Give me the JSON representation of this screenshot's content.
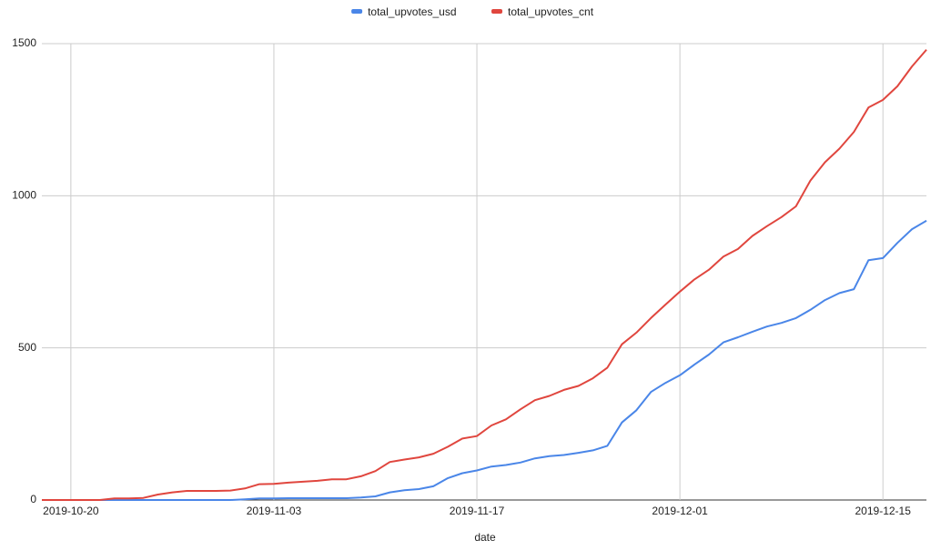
{
  "chart_data": {
    "type": "line",
    "x_label": "date",
    "x": [
      "2019-10-18",
      "2019-10-19",
      "2019-10-20",
      "2019-10-21",
      "2019-10-22",
      "2019-10-23",
      "2019-10-24",
      "2019-10-25",
      "2019-10-26",
      "2019-10-27",
      "2019-10-28",
      "2019-10-29",
      "2019-10-30",
      "2019-10-31",
      "2019-11-01",
      "2019-11-02",
      "2019-11-03",
      "2019-11-04",
      "2019-11-05",
      "2019-11-06",
      "2019-11-07",
      "2019-11-08",
      "2019-11-09",
      "2019-11-10",
      "2019-11-11",
      "2019-11-12",
      "2019-11-13",
      "2019-11-14",
      "2019-11-15",
      "2019-11-16",
      "2019-11-17",
      "2019-11-18",
      "2019-11-19",
      "2019-11-20",
      "2019-11-21",
      "2019-11-22",
      "2019-11-23",
      "2019-11-24",
      "2019-11-25",
      "2019-11-26",
      "2019-11-27",
      "2019-11-28",
      "2019-11-29",
      "2019-11-30",
      "2019-12-01",
      "2019-12-02",
      "2019-12-03",
      "2019-12-04",
      "2019-12-05",
      "2019-12-06",
      "2019-12-07",
      "2019-12-08",
      "2019-12-09",
      "2019-12-10",
      "2019-12-11",
      "2019-12-12",
      "2019-12-13",
      "2019-12-14",
      "2019-12-15",
      "2019-12-16",
      "2019-12-17",
      "2019-12-18"
    ],
    "series": [
      {
        "name": "total_upvotes_usd",
        "color": "#4a86e8",
        "values": [
          0,
          0,
          0,
          0,
          0,
          0,
          0,
          0,
          0,
          0,
          0,
          0,
          0,
          0,
          2,
          5,
          5,
          6,
          6,
          6,
          6,
          6,
          8,
          12,
          25,
          32,
          36,
          45,
          72,
          88,
          97,
          110,
          115,
          123,
          137,
          144,
          148,
          155,
          163,
          178,
          255,
          295,
          355,
          385,
          410,
          445,
          478,
          518,
          535,
          553,
          570,
          582,
          598,
          625,
          657,
          680,
          693,
          788,
          795,
          845,
          890,
          918
        ]
      },
      {
        "name": "total_upvotes_cnt",
        "color": "#e0463e",
        "values": [
          0,
          0,
          0,
          0,
          0,
          5,
          5,
          7,
          18,
          25,
          30,
          30,
          30,
          31,
          38,
          52,
          53,
          57,
          60,
          63,
          68,
          68,
          78,
          95,
          125,
          133,
          140,
          152,
          175,
          202,
          210,
          245,
          265,
          298,
          328,
          342,
          362,
          375,
          400,
          435,
          512,
          550,
          598,
          642,
          685,
          725,
          757,
          800,
          825,
          868,
          900,
          930,
          965,
          1050,
          1110,
          1155,
          1210,
          1290,
          1315,
          1360,
          1425,
          1480
        ]
      }
    ],
    "xlim": [
      "2019-10-18",
      "2019-12-18"
    ],
    "xticks": [
      "2019-10-20",
      "2019-11-03",
      "2019-11-17",
      "2019-12-01",
      "2019-12-15"
    ],
    "ylim": [
      0,
      1500
    ],
    "yticks": [
      0,
      500,
      1000,
      1500
    ],
    "grid": true,
    "legend": "top"
  }
}
